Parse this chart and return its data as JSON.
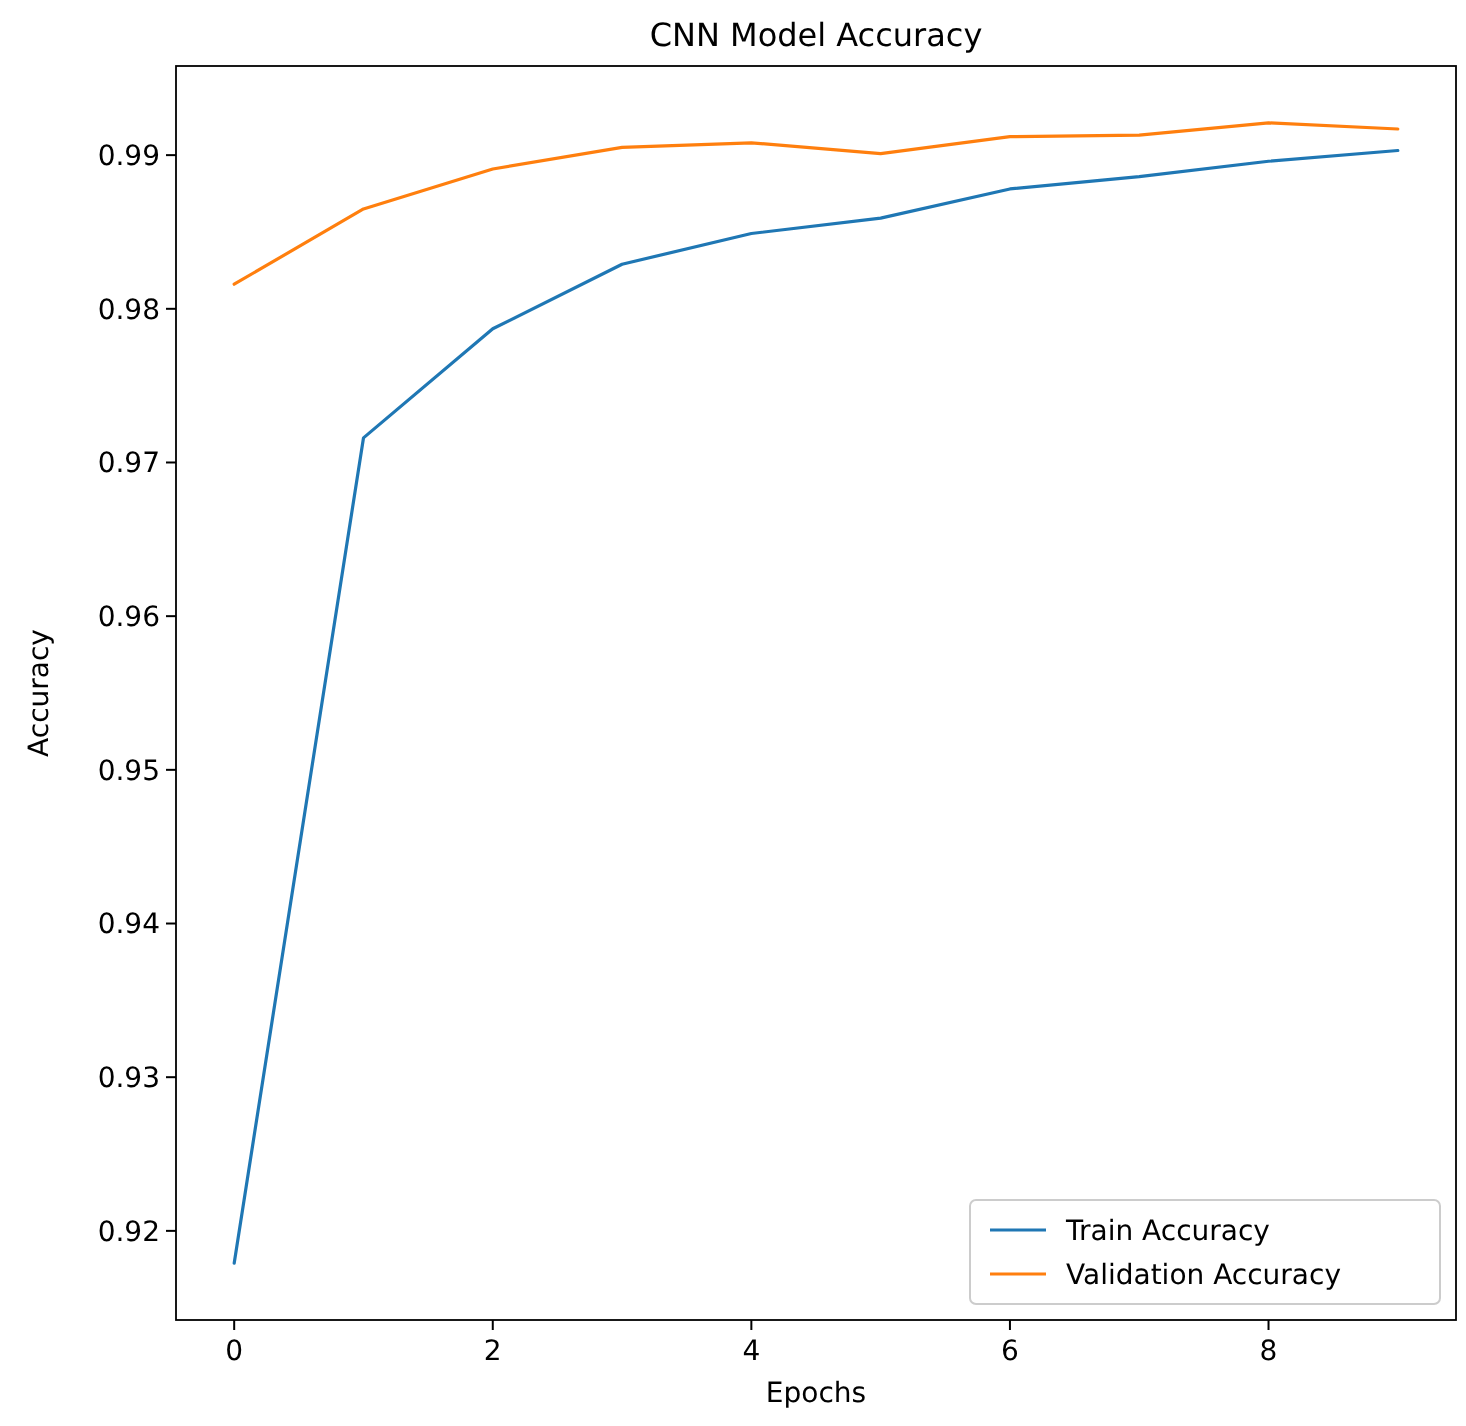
{
  "chart_data": {
    "type": "line",
    "title": "CNN Model Accuracy",
    "xlabel": "Epochs",
    "ylabel": "Accuracy",
    "x": [
      0,
      1,
      2,
      3,
      4,
      5,
      6,
      7,
      8,
      9
    ],
    "series": [
      {
        "name": "Train Accuracy",
        "color": "#1f77b4",
        "values": [
          0.9179,
          0.9716,
          0.9787,
          0.9829,
          0.9849,
          0.9859,
          0.9878,
          0.9886,
          0.9896,
          0.9903
        ]
      },
      {
        "name": "Validation Accuracy",
        "color": "#ff7f0e",
        "values": [
          0.9816,
          0.9865,
          0.9891,
          0.9905,
          0.9908,
          0.9901,
          0.9912,
          0.9913,
          0.9921,
          0.9917
        ]
      }
    ],
    "xlim": [
      -0.45,
      9.45
    ],
    "xticks": [
      0,
      2,
      4,
      6,
      8
    ],
    "ylim": [
      0.9142,
      0.9958
    ],
    "yticks": [
      0.92,
      0.93,
      0.94,
      0.95,
      0.96,
      0.97,
      0.98,
      0.99
    ],
    "grid": false,
    "legend": "bottom right",
    "marker": "none",
    "line_style": "solid"
  }
}
